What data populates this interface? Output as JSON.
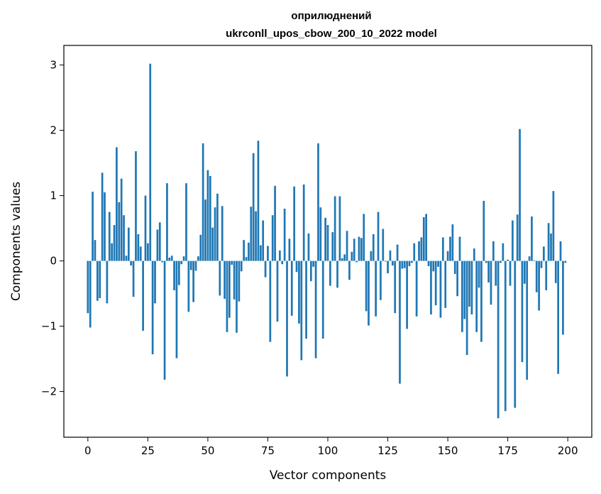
{
  "chart_data": {
    "type": "bar",
    "title": "оприлюднений",
    "subtitle": "ukrconll_upos_cbow_200_10_2022 model",
    "xlabel": "Vector components",
    "ylabel": "Components values",
    "xlim": [
      -10,
      210
    ],
    "ylim": [
      -2.7,
      3.3
    ],
    "xticks": [
      0,
      25,
      50,
      75,
      100,
      125,
      150,
      175,
      200
    ],
    "yticks": [
      -2,
      -1,
      0,
      1,
      2,
      3
    ],
    "ytick_labels": [
      "−2",
      "−1",
      "0",
      "1",
      "2",
      "3"
    ],
    "bar_color": "#1f77b4",
    "grid": false,
    "x": [
      0,
      1,
      2,
      3,
      4,
      5,
      6,
      7,
      8,
      9,
      10,
      11,
      12,
      13,
      14,
      15,
      16,
      17,
      18,
      19,
      20,
      21,
      22,
      23,
      24,
      25,
      26,
      27,
      28,
      29,
      30,
      31,
      32,
      33,
      34,
      35,
      36,
      37,
      38,
      39,
      40,
      41,
      42,
      43,
      44,
      45,
      46,
      47,
      48,
      49,
      50,
      51,
      52,
      53,
      54,
      55,
      56,
      57,
      58,
      59,
      60,
      61,
      62,
      63,
      64,
      65,
      66,
      67,
      68,
      69,
      70,
      71,
      72,
      73,
      74,
      75,
      76,
      77,
      78,
      79,
      80,
      81,
      82,
      83,
      84,
      85,
      86,
      87,
      88,
      89,
      90,
      91,
      92,
      93,
      94,
      95,
      96,
      97,
      98,
      99,
      100,
      101,
      102,
      103,
      104,
      105,
      106,
      107,
      108,
      109,
      110,
      111,
      112,
      113,
      114,
      115,
      116,
      117,
      118,
      119,
      120,
      121,
      122,
      123,
      124,
      125,
      126,
      127,
      128,
      129,
      130,
      131,
      132,
      133,
      134,
      135,
      136,
      137,
      138,
      139,
      140,
      141,
      142,
      143,
      144,
      145,
      146,
      147,
      148,
      149,
      150,
      151,
      152,
      153,
      154,
      155,
      156,
      157,
      158,
      159,
      160,
      161,
      162,
      163,
      164,
      165,
      166,
      167,
      168,
      169,
      170,
      171,
      172,
      173,
      174,
      175,
      176,
      177,
      178,
      179,
      180,
      181,
      182,
      183,
      184,
      185,
      186,
      187,
      188,
      189,
      190,
      191,
      192,
      193,
      194,
      195,
      196,
      197,
      198,
      199
    ],
    "values": [
      -0.8,
      -1.02,
      1.06,
      0.32,
      -0.61,
      -0.57,
      1.35,
      1.05,
      -0.65,
      0.75,
      0.27,
      0.55,
      1.74,
      0.9,
      1.26,
      0.7,
      0.08,
      0.51,
      -0.07,
      -0.55,
      1.68,
      0.41,
      0.22,
      -1.07,
      1.0,
      0.27,
      3.02,
      -1.43,
      -0.65,
      0.48,
      0.59,
      -0.02,
      -1.82,
      1.19,
      0.05,
      0.08,
      -0.45,
      -1.49,
      -0.37,
      -0.05,
      0.07,
      1.19,
      -0.78,
      -0.14,
      -0.63,
      -0.15,
      0.07,
      0.4,
      1.8,
      0.94,
      1.39,
      1.3,
      0.51,
      0.82,
      1.03,
      -0.53,
      0.84,
      -0.58,
      -1.09,
      -0.87,
      -0.06,
      -0.59,
      -1.1,
      -0.62,
      -0.16,
      0.32,
      0.06,
      0.28,
      0.83,
      1.65,
      0.76,
      1.84,
      0.24,
      0.62,
      -0.25,
      0.23,
      -1.24,
      0.7,
      1.15,
      -0.93,
      0.16,
      -0.05,
      0.8,
      -1.77,
      0.34,
      -0.84,
      1.14,
      -0.17,
      -0.96,
      -1.52,
      1.17,
      -1.19,
      0.42,
      -0.31,
      -0.09,
      -1.49,
      1.8,
      0.82,
      -1.19,
      0.66,
      0.55,
      -0.38,
      0.44,
      0.99,
      -0.41,
      0.99,
      0.04,
      0.1,
      0.46,
      -0.29,
      0.14,
      0.34,
      -0.02,
      0.37,
      0.35,
      0.72,
      -0.77,
      -0.99,
      0.15,
      0.41,
      -0.85,
      0.75,
      -0.6,
      0.49,
      -0.01,
      -0.19,
      0.16,
      -0.07,
      -0.8,
      0.25,
      -1.88,
      -0.12,
      -0.11,
      -1.04,
      -0.08,
      -0.03,
      0.27,
      -0.85,
      0.3,
      0.36,
      0.67,
      0.72,
      -0.08,
      -0.82,
      -0.16,
      -0.68,
      -0.09,
      -0.87,
      0.36,
      -0.72,
      0.15,
      0.37,
      0.56,
      -0.2,
      -0.54,
      0.37,
      -1.09,
      -0.89,
      -1.44,
      -0.7,
      -0.82,
      0.19,
      -1.09,
      -0.41,
      -1.24,
      0.92,
      -0.03,
      -0.33,
      -0.67,
      0.3,
      -0.38,
      -2.41,
      -0.03,
      0.27,
      -2.3,
      0.02,
      -0.38,
      0.62,
      -2.25,
      0.71,
      2.02,
      -1.55,
      -0.35,
      -1.82,
      0.07,
      0.68,
      0.01,
      -0.48,
      -0.76,
      -0.11,
      0.22,
      -0.45,
      0.58,
      0.42,
      1.07,
      -0.34,
      -1.73,
      0.3,
      -1.13,
      -0.03
    ]
  }
}
